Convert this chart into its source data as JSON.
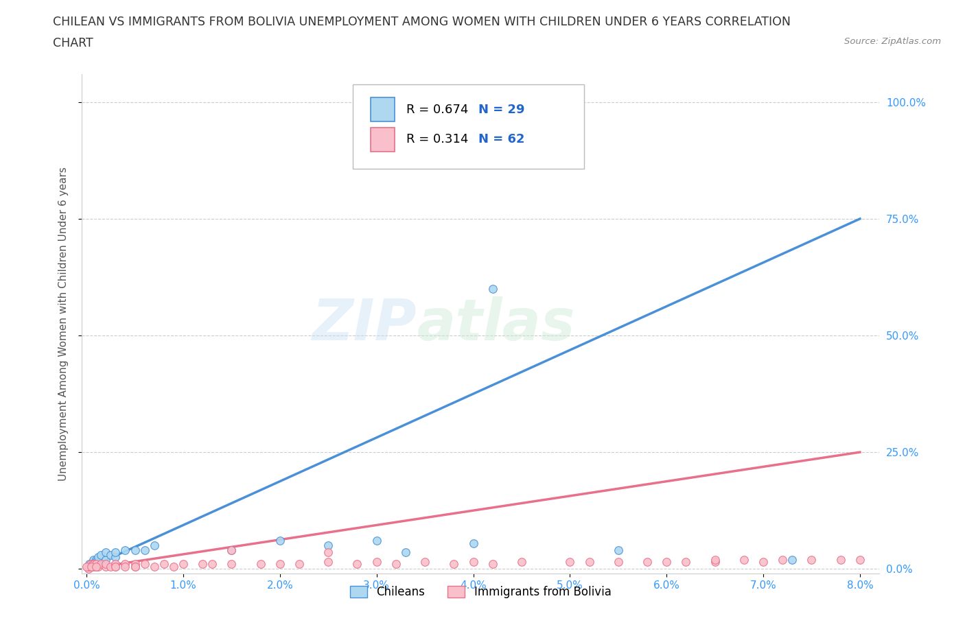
{
  "title_line1": "CHILEAN VS IMMIGRANTS FROM BOLIVIA UNEMPLOYMENT AMONG WOMEN WITH CHILDREN UNDER 6 YEARS CORRELATION",
  "title_line2": "CHART",
  "source": "Source: ZipAtlas.com",
  "ylabel_label": "Unemployment Among Women with Children Under 6 years",
  "x_ticks": [
    0.0,
    0.01,
    0.02,
    0.03,
    0.04,
    0.05,
    0.06,
    0.07,
    0.08
  ],
  "x_tick_labels": [
    "0.0%",
    "1.0%",
    "2.0%",
    "3.0%",
    "4.0%",
    "5.0%",
    "6.0%",
    "7.0%",
    "8.0%"
  ],
  "y_ticks": [
    0.0,
    0.25,
    0.5,
    0.75,
    1.0
  ],
  "y_tick_labels": [
    "0.0%",
    "25.0%",
    "50.0%",
    "75.0%",
    "100.0%"
  ],
  "chilean_color": "#ADD8F0",
  "bolivian_color": "#F9C0CB",
  "chilean_line_color": "#4A90D9",
  "bolivian_line_color": "#E8708A",
  "R_chilean": 0.674,
  "N_chilean": 29,
  "R_bolivian": 0.314,
  "N_bolivian": 62,
  "watermark_zip": "ZIP",
  "watermark_atlas": "atlas",
  "legend_chileans": "Chileans",
  "legend_bolivians": "Immigrants from Bolivia",
  "chilean_x": [
    0.0002,
    0.0003,
    0.0004,
    0.0005,
    0.0006,
    0.0007,
    0.0008,
    0.001,
    0.001,
    0.0012,
    0.0015,
    0.002,
    0.002,
    0.0025,
    0.003,
    0.003,
    0.004,
    0.005,
    0.006,
    0.007,
    0.015,
    0.02,
    0.025,
    0.03,
    0.033,
    0.04,
    0.042,
    0.055,
    0.073
  ],
  "chilean_y": [
    0.005,
    0.01,
    0.005,
    0.01,
    0.015,
    0.02,
    0.01,
    0.02,
    0.015,
    0.025,
    0.03,
    0.02,
    0.035,
    0.03,
    0.025,
    0.035,
    0.04,
    0.04,
    0.04,
    0.05,
    0.04,
    0.06,
    0.05,
    0.06,
    0.035,
    0.055,
    0.6,
    0.04,
    0.02
  ],
  "bolivian_x": [
    0.0001,
    0.0002,
    0.0003,
    0.0004,
    0.0005,
    0.0006,
    0.0007,
    0.0008,
    0.001,
    0.001,
    0.0012,
    0.0015,
    0.002,
    0.002,
    0.0025,
    0.003,
    0.003,
    0.004,
    0.004,
    0.005,
    0.005,
    0.006,
    0.007,
    0.008,
    0.009,
    0.01,
    0.012,
    0.013,
    0.015,
    0.018,
    0.02,
    0.022,
    0.025,
    0.028,
    0.03,
    0.032,
    0.035,
    0.038,
    0.04,
    0.042,
    0.045,
    0.05,
    0.052,
    0.055,
    0.058,
    0.06,
    0.062,
    0.065,
    0.068,
    0.07,
    0.072,
    0.075,
    0.078,
    0.08,
    0.0,
    0.0005,
    0.001,
    0.003,
    0.005,
    0.015,
    0.025,
    0.065
  ],
  "bolivian_y": [
    0.005,
    0.0,
    0.005,
    0.01,
    0.005,
    0.01,
    0.005,
    0.01,
    0.005,
    0.01,
    0.005,
    0.01,
    0.005,
    0.01,
    0.005,
    0.01,
    0.005,
    0.01,
    0.005,
    0.01,
    0.005,
    0.01,
    0.005,
    0.01,
    0.005,
    0.01,
    0.01,
    0.01,
    0.01,
    0.01,
    0.01,
    0.01,
    0.015,
    0.01,
    0.015,
    0.01,
    0.015,
    0.01,
    0.015,
    0.01,
    0.015,
    0.015,
    0.015,
    0.015,
    0.015,
    0.015,
    0.015,
    0.015,
    0.02,
    0.015,
    0.02,
    0.02,
    0.02,
    0.02,
    0.005,
    0.005,
    0.005,
    0.005,
    0.005,
    0.04,
    0.035,
    0.02
  ],
  "background_color": "#ffffff",
  "grid_color": "#cccccc",
  "title_color": "#333333",
  "axis_label_color": "#555555",
  "tick_color": "#3399ff",
  "stat_r_color": "#000000",
  "stat_n_color": "#2266cc"
}
